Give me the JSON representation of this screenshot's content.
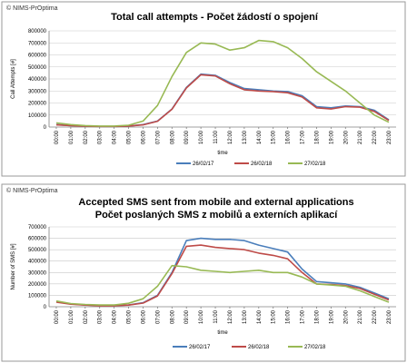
{
  "chart_data": [
    {
      "type": "line",
      "copyright": "© NIMS-PrOptima",
      "title": [
        "Total call attempts - Počet žádostí o spojení"
      ],
      "xlabel": "time",
      "ylabel": "Call Attempts [#]",
      "ylim": [
        0,
        800000
      ],
      "yticks": [
        "0",
        "100000",
        "200000",
        "300000",
        "400000",
        "500000",
        "600000",
        "700000",
        "800000"
      ],
      "categories": [
        "00:00",
        "01:00",
        "02:00",
        "03:00",
        "04:00",
        "05:00",
        "06:00",
        "07:00",
        "08:00",
        "09:00",
        "10:00",
        "11:00",
        "12:00",
        "13:00",
        "14:00",
        "15:00",
        "16:00",
        "17:00",
        "18:00",
        "19:00",
        "20:00",
        "21:00",
        "22:00",
        "23:00"
      ],
      "legend_position": "bottom",
      "grid": true,
      "series": [
        {
          "name": "26/02/17",
          "color": "#4a7ebb",
          "values": [
            20000,
            12000,
            8000,
            5000,
            5000,
            8000,
            20000,
            50000,
            150000,
            330000,
            440000,
            430000,
            370000,
            320000,
            310000,
            300000,
            295000,
            260000,
            170000,
            160000,
            175000,
            170000,
            140000,
            60000
          ]
        },
        {
          "name": "26/02/18",
          "color": "#be4b48",
          "values": [
            18000,
            11000,
            7000,
            5000,
            5000,
            8000,
            18000,
            48000,
            148000,
            325000,
            435000,
            425000,
            360000,
            310000,
            300000,
            295000,
            285000,
            250000,
            160000,
            150000,
            170000,
            165000,
            130000,
            55000
          ]
        },
        {
          "name": "27/02/18",
          "color": "#98b954",
          "values": [
            35000,
            20000,
            12000,
            8000,
            8000,
            15000,
            50000,
            180000,
            420000,
            620000,
            700000,
            690000,
            640000,
            660000,
            720000,
            710000,
            660000,
            570000,
            460000,
            380000,
            300000,
            200000,
            100000,
            40000
          ]
        }
      ]
    },
    {
      "type": "line",
      "copyright": "© NIMS-PrOptima",
      "title": [
        "Accepted SMS sent from mobile and external applications",
        "Počet poslaných SMS z mobilů a externích aplikací"
      ],
      "xlabel": "time",
      "ylabel": "Number of SMS [#]",
      "ylim": [
        0,
        700000
      ],
      "yticks": [
        "0",
        "100000",
        "200000",
        "300000",
        "400000",
        "500000",
        "600000",
        "700000"
      ],
      "categories": [
        "00:00",
        "01:00",
        "02:00",
        "03:00",
        "04:00",
        "05:00",
        "06:00",
        "07:00",
        "08:00",
        "09:00",
        "10:00",
        "11:00",
        "12:00",
        "13:00",
        "14:00",
        "15:00",
        "16:00",
        "17:00",
        "18:00",
        "19:00",
        "20:00",
        "21:00",
        "22:00",
        "23:00"
      ],
      "legend_position": "bottom",
      "grid": true,
      "series": [
        {
          "name": "26/02/17",
          "color": "#4a7ebb",
          "values": [
            45000,
            25000,
            15000,
            10000,
            10000,
            15000,
            35000,
            100000,
            300000,
            580000,
            600000,
            590000,
            590000,
            580000,
            540000,
            510000,
            480000,
            330000,
            220000,
            210000,
            200000,
            170000,
            120000,
            70000
          ]
        },
        {
          "name": "26/02/18",
          "color": "#be4b48",
          "values": [
            40000,
            22000,
            14000,
            9000,
            9000,
            14000,
            32000,
            95000,
            290000,
            530000,
            540000,
            520000,
            510000,
            500000,
            470000,
            450000,
            420000,
            300000,
            200000,
            195000,
            185000,
            160000,
            110000,
            60000
          ]
        },
        {
          "name": "27/02/18",
          "color": "#98b954",
          "values": [
            50000,
            28000,
            20000,
            15000,
            15000,
            30000,
            70000,
            180000,
            360000,
            350000,
            320000,
            310000,
            300000,
            310000,
            320000,
            300000,
            300000,
            260000,
            200000,
            190000,
            180000,
            140000,
            90000,
            40000
          ]
        }
      ]
    }
  ]
}
